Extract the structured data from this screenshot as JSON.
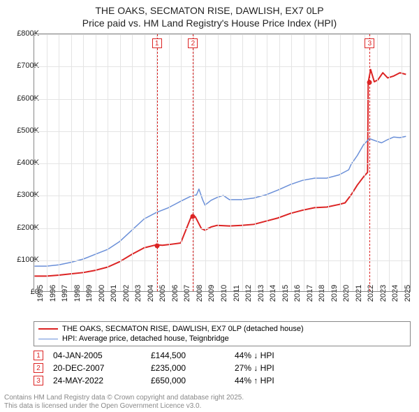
{
  "title_line1": "THE OAKS, SECMATON RISE, DAWLISH, EX7 0LP",
  "title_line2": "Price paid vs. HM Land Registry's House Price Index (HPI)",
  "chart": {
    "type": "line",
    "background_color": "#ffffff",
    "grid_color": "#e4e4e4",
    "border_color": "#888888",
    "xlim": [
      1995,
      2025.8
    ],
    "ylim": [
      0,
      800000
    ],
    "ytick_step": 100000,
    "ytick_labels": [
      "£0",
      "£100K",
      "£200K",
      "£300K",
      "£400K",
      "£500K",
      "£600K",
      "£700K",
      "£800K"
    ],
    "xtick_step": 1,
    "xtick_labels": [
      "1995",
      "1996",
      "1997",
      "1998",
      "1999",
      "2000",
      "2001",
      "2002",
      "2003",
      "2004",
      "2005",
      "2006",
      "2007",
      "2008",
      "2009",
      "2010",
      "2011",
      "2012",
      "2013",
      "2014",
      "2015",
      "2016",
      "2017",
      "2018",
      "2019",
      "2020",
      "2021",
      "2022",
      "2023",
      "2024",
      "2025"
    ],
    "label_fontsize": 11,
    "title_fontsize": 14,
    "series": [
      {
        "name": "THE OAKS, SECMATON RISE, DAWLISH, EX7 0LP (detached house)",
        "color": "#dc2424",
        "line_width": 2,
        "data": [
          [
            1995,
            47000
          ],
          [
            1996,
            47000
          ],
          [
            1997,
            50000
          ],
          [
            1998,
            54000
          ],
          [
            1999,
            58000
          ],
          [
            2000,
            65000
          ],
          [
            2001,
            75000
          ],
          [
            2002,
            92000
          ],
          [
            2003,
            115000
          ],
          [
            2004,
            135000
          ],
          [
            2005,
            144500
          ],
          [
            2005.5,
            143000
          ],
          [
            2006,
            145000
          ],
          [
            2007,
            150000
          ],
          [
            2007.9,
            235000
          ],
          [
            2008.2,
            232000
          ],
          [
            2008.7,
            195000
          ],
          [
            2009,
            190000
          ],
          [
            2009.5,
            200000
          ],
          [
            2010,
            205000
          ],
          [
            2011,
            203000
          ],
          [
            2012,
            205000
          ],
          [
            2013,
            208000
          ],
          [
            2014,
            218000
          ],
          [
            2015,
            228000
          ],
          [
            2016,
            242000
          ],
          [
            2017,
            252000
          ],
          [
            2018,
            260000
          ],
          [
            2019,
            262000
          ],
          [
            2020,
            270000
          ],
          [
            2020.5,
            275000
          ],
          [
            2021,
            300000
          ],
          [
            2021.5,
            330000
          ],
          [
            2022,
            355000
          ],
          [
            2022.35,
            370000
          ],
          [
            2022.4,
            650000
          ],
          [
            2022.6,
            690000
          ],
          [
            2022.9,
            652000
          ],
          [
            2023.2,
            658000
          ],
          [
            2023.6,
            680000
          ],
          [
            2024,
            664000
          ],
          [
            2024.5,
            670000
          ],
          [
            2025,
            680000
          ],
          [
            2025.5,
            675000
          ]
        ]
      },
      {
        "name": "HPI: Average price, detached house, Teignbridge",
        "color": "#6a8fd8",
        "line_width": 1.5,
        "data": [
          [
            1995,
            78000
          ],
          [
            1996,
            78000
          ],
          [
            1997,
            82000
          ],
          [
            1998,
            90000
          ],
          [
            1999,
            100000
          ],
          [
            2000,
            115000
          ],
          [
            2001,
            130000
          ],
          [
            2002,
            155000
          ],
          [
            2003,
            190000
          ],
          [
            2004,
            225000
          ],
          [
            2005,
            245000
          ],
          [
            2006,
            260000
          ],
          [
            2007,
            280000
          ],
          [
            2007.8,
            295000
          ],
          [
            2008.3,
            300000
          ],
          [
            2008.5,
            318000
          ],
          [
            2008.8,
            285000
          ],
          [
            2009,
            268000
          ],
          [
            2009.5,
            283000
          ],
          [
            2010,
            292000
          ],
          [
            2010.5,
            298000
          ],
          [
            2011,
            285000
          ],
          [
            2012,
            285000
          ],
          [
            2013,
            290000
          ],
          [
            2014,
            300000
          ],
          [
            2015,
            315000
          ],
          [
            2016,
            332000
          ],
          [
            2017,
            345000
          ],
          [
            2018,
            352000
          ],
          [
            2019,
            352000
          ],
          [
            2020,
            362000
          ],
          [
            2020.8,
            378000
          ],
          [
            2021,
            395000
          ],
          [
            2021.5,
            422000
          ],
          [
            2022,
            455000
          ],
          [
            2022.5,
            475000
          ],
          [
            2023,
            468000
          ],
          [
            2023.5,
            462000
          ],
          [
            2024,
            472000
          ],
          [
            2024.5,
            480000
          ],
          [
            2025,
            478000
          ],
          [
            2025.5,
            482000
          ]
        ]
      }
    ],
    "markers": [
      {
        "n": "1",
        "x": 2005.02,
        "price": 144500
      },
      {
        "n": "2",
        "x": 2007.97,
        "price": 235000
      },
      {
        "n": "3",
        "x": 2022.4,
        "price": 650000
      }
    ]
  },
  "legend": {
    "items": [
      {
        "color": "#dc2424",
        "width": 2,
        "label": "THE OAKS, SECMATON RISE, DAWLISH, EX7 0LP (detached house)"
      },
      {
        "color": "#6a8fd8",
        "width": 1.5,
        "label": "HPI: Average price, detached house, Teignbridge"
      }
    ]
  },
  "sales": [
    {
      "n": "1",
      "date": "04-JAN-2005",
      "price": "£144,500",
      "diff": "44% ↓ HPI"
    },
    {
      "n": "2",
      "date": "20-DEC-2007",
      "price": "£235,000",
      "diff": "27% ↓ HPI"
    },
    {
      "n": "3",
      "date": "24-MAY-2022",
      "price": "£650,000",
      "diff": "44% ↑ HPI"
    }
  ],
  "attribution_line1": "Contains HM Land Registry data © Crown copyright and database right 2025.",
  "attribution_line2": "This data is licensed under the Open Government Licence v3.0."
}
